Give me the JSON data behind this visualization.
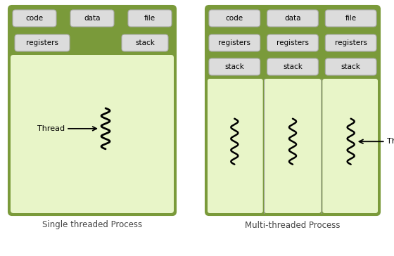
{
  "title_left": "Single threaded Process",
  "title_right": "Multi-threaded Process",
  "bg_color": "#ffffff",
  "outer_green": "#7a9a3a",
  "inner_light_green": "#e8f5c8",
  "box_fill": "#dcdcdc",
  "box_edge": "#aaaaaa",
  "text_color": "#000000",
  "title_color": "#444444",
  "single_shared_labels": [
    "code",
    "data",
    "file"
  ],
  "multi_shared_labels": [
    "code",
    "data",
    "file"
  ],
  "thread_label": "Thread"
}
